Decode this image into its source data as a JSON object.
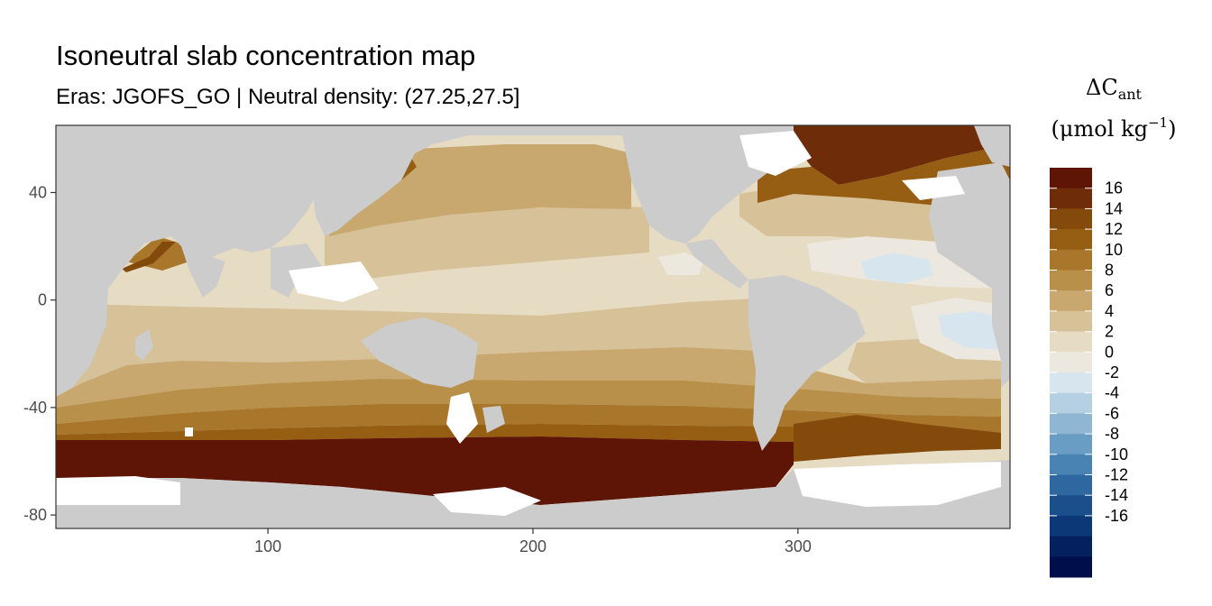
{
  "chart_data": {
    "type": "heatmap",
    "title": "Isoneutral slab concentration map",
    "subtitle": "Eras: JGOFS_GO | Neutral density: (27.25,27.5]",
    "x_ticks": [
      100,
      200,
      300
    ],
    "y_ticks": [
      40,
      0,
      -40,
      -80
    ],
    "xlim": [
      20,
      380
    ],
    "ylim": [
      -85,
      65
    ],
    "grid": false,
    "legend": {
      "placement": "right",
      "title_symbol": "ΔC",
      "title_subscript": "ant",
      "units_main": "(μmol kg",
      "units_sup": "−1",
      "units_close": ")",
      "labels": [
        "16",
        "14",
        "12",
        "10",
        "8",
        "6",
        "4",
        "2",
        "0",
        "-2",
        "-4",
        "-6",
        "-8",
        "-10",
        "-12",
        "-14",
        "-16"
      ],
      "colors": [
        "#5f1506",
        "#6f2c08",
        "#834a0c",
        "#955e12",
        "#a8772c",
        "#b8904a",
        "#c8a86f",
        "#d7c198",
        "#e6dcc4",
        "#ece8df",
        "#d7e5ee",
        "#b5d0e3",
        "#8fb7d3",
        "#6a9dc3",
        "#4883b3",
        "#2f68a0",
        "#1a4f8c",
        "#0c3877",
        "#05205f",
        "#000f4c"
      ]
    },
    "colors": {
      "land": "#cccccc",
      "missing": "#ffffff",
      "panel_border": "#333333"
    }
  }
}
